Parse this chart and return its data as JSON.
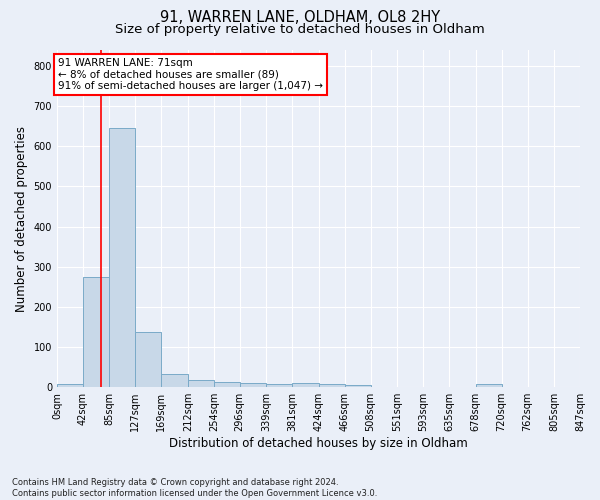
{
  "title_line1": "91, WARREN LANE, OLDHAM, OL8 2HY",
  "title_line2": "Size of property relative to detached houses in Oldham",
  "xlabel": "Distribution of detached houses by size in Oldham",
  "ylabel": "Number of detached properties",
  "bar_edges": [
    0,
    42,
    85,
    127,
    169,
    212,
    254,
    296,
    339,
    381,
    424,
    466,
    508,
    551,
    593,
    635,
    678,
    720,
    762,
    805,
    847
  ],
  "bar_heights": [
    8,
    275,
    645,
    138,
    34,
    18,
    12,
    10,
    9,
    10,
    8,
    5,
    0,
    0,
    0,
    0,
    8,
    0,
    0,
    0
  ],
  "bar_color": "#c8d8e8",
  "bar_edge_color": "#7aaac8",
  "property_line_x": 71,
  "annotation_line1": "91 WARREN LANE: 71sqm",
  "annotation_line2": "← 8% of detached houses are smaller (89)",
  "annotation_line3": "91% of semi-detached houses are larger (1,047) →",
  "ylim": [
    0,
    840
  ],
  "yticks": [
    0,
    100,
    200,
    300,
    400,
    500,
    600,
    700,
    800
  ],
  "footer_line1": "Contains HM Land Registry data © Crown copyright and database right 2024.",
  "footer_line2": "Contains public sector information licensed under the Open Government Licence v3.0.",
  "background_color": "#eaeff8",
  "plot_background_color": "#eaeff8",
  "grid_color": "#ffffff",
  "title_fontsize": 10.5,
  "subtitle_fontsize": 9.5,
  "tick_fontsize": 7,
  "ylabel_fontsize": 8.5,
  "xlabel_fontsize": 8.5,
  "annotation_fontsize": 7.5,
  "footer_fontsize": 6.0
}
